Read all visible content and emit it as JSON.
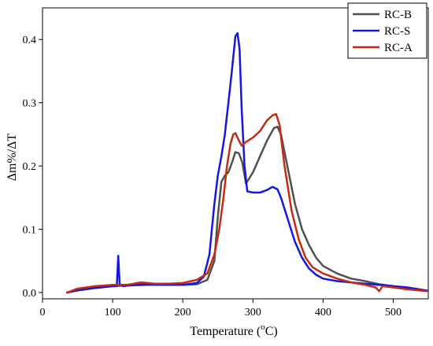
{
  "chart_data": {
    "type": "line",
    "xlabel_prefix": "Temperature (",
    "xlabel_sup": "o",
    "xlabel_suffix": "C)",
    "ylabel": "Δm%/ΔT",
    "xlim": [
      0,
      550
    ],
    "ylim": [
      -0.01,
      0.45
    ],
    "xticks": [
      0,
      100,
      200,
      300,
      400,
      500
    ],
    "yticks": [
      0.0,
      0.1,
      0.2,
      0.3,
      0.4
    ],
    "ytick_labels": [
      "0.0",
      "0.1",
      "0.2",
      "0.3",
      "0.4"
    ],
    "grid": false,
    "legend_position": "top-right",
    "series": [
      {
        "name": "RC-B",
        "color": "#505050",
        "points": [
          [
            35,
            0.0
          ],
          [
            50,
            0.003
          ],
          [
            75,
            0.007
          ],
          [
            100,
            0.01
          ],
          [
            120,
            0.011
          ],
          [
            150,
            0.012
          ],
          [
            180,
            0.012
          ],
          [
            200,
            0.012
          ],
          [
            220,
            0.013
          ],
          [
            235,
            0.02
          ],
          [
            245,
            0.05
          ],
          [
            250,
            0.12
          ],
          [
            255,
            0.175
          ],
          [
            260,
            0.185
          ],
          [
            265,
            0.19
          ],
          [
            270,
            0.205
          ],
          [
            275,
            0.222
          ],
          [
            280,
            0.22
          ],
          [
            285,
            0.205
          ],
          [
            290,
            0.172
          ],
          [
            300,
            0.19
          ],
          [
            310,
            0.215
          ],
          [
            320,
            0.24
          ],
          [
            330,
            0.26
          ],
          [
            335,
            0.262
          ],
          [
            340,
            0.25
          ],
          [
            350,
            0.195
          ],
          [
            360,
            0.14
          ],
          [
            370,
            0.1
          ],
          [
            380,
            0.075
          ],
          [
            390,
            0.055
          ],
          [
            400,
            0.042
          ],
          [
            420,
            0.03
          ],
          [
            440,
            0.022
          ],
          [
            460,
            0.018
          ],
          [
            480,
            0.013
          ],
          [
            500,
            0.01
          ],
          [
            520,
            0.006
          ],
          [
            548,
            0.003
          ]
        ]
      },
      {
        "name": "RC-S",
        "color": "#1616e0",
        "points": [
          [
            35,
            0.0
          ],
          [
            50,
            0.004
          ],
          [
            75,
            0.007
          ],
          [
            100,
            0.01
          ],
          [
            106,
            0.01
          ],
          [
            108,
            0.058
          ],
          [
            110,
            0.013
          ],
          [
            115,
            0.01
          ],
          [
            130,
            0.012
          ],
          [
            150,
            0.013
          ],
          [
            180,
            0.012
          ],
          [
            200,
            0.012
          ],
          [
            220,
            0.015
          ],
          [
            230,
            0.025
          ],
          [
            238,
            0.06
          ],
          [
            245,
            0.14
          ],
          [
            250,
            0.185
          ],
          [
            255,
            0.215
          ],
          [
            260,
            0.25
          ],
          [
            265,
            0.3
          ],
          [
            270,
            0.35
          ],
          [
            275,
            0.405
          ],
          [
            278,
            0.41
          ],
          [
            281,
            0.385
          ],
          [
            284,
            0.29
          ],
          [
            288,
            0.2
          ],
          [
            292,
            0.16
          ],
          [
            300,
            0.158
          ],
          [
            310,
            0.158
          ],
          [
            320,
            0.162
          ],
          [
            328,
            0.167
          ],
          [
            335,
            0.163
          ],
          [
            340,
            0.15
          ],
          [
            350,
            0.115
          ],
          [
            360,
            0.08
          ],
          [
            370,
            0.055
          ],
          [
            380,
            0.038
          ],
          [
            390,
            0.028
          ],
          [
            400,
            0.022
          ],
          [
            420,
            0.018
          ],
          [
            440,
            0.016
          ],
          [
            460,
            0.014
          ],
          [
            480,
            0.012
          ],
          [
            500,
            0.01
          ],
          [
            520,
            0.008
          ],
          [
            548,
            0.003
          ]
        ]
      },
      {
        "name": "RC-A",
        "color": "#c62a10",
        "points": [
          [
            35,
            0.0
          ],
          [
            50,
            0.006
          ],
          [
            75,
            0.01
          ],
          [
            100,
            0.012
          ],
          [
            120,
            0.012
          ],
          [
            140,
            0.016
          ],
          [
            160,
            0.014
          ],
          [
            180,
            0.014
          ],
          [
            200,
            0.015
          ],
          [
            220,
            0.02
          ],
          [
            235,
            0.03
          ],
          [
            245,
            0.06
          ],
          [
            252,
            0.1
          ],
          [
            258,
            0.15
          ],
          [
            263,
            0.2
          ],
          [
            268,
            0.235
          ],
          [
            272,
            0.25
          ],
          [
            275,
            0.252
          ],
          [
            280,
            0.24
          ],
          [
            284,
            0.232
          ],
          [
            290,
            0.238
          ],
          [
            300,
            0.245
          ],
          [
            310,
            0.255
          ],
          [
            320,
            0.272
          ],
          [
            328,
            0.28
          ],
          [
            333,
            0.282
          ],
          [
            338,
            0.265
          ],
          [
            345,
            0.2
          ],
          [
            355,
            0.13
          ],
          [
            365,
            0.085
          ],
          [
            375,
            0.055
          ],
          [
            385,
            0.04
          ],
          [
            400,
            0.03
          ],
          [
            420,
            0.022
          ],
          [
            440,
            0.016
          ],
          [
            460,
            0.012
          ],
          [
            475,
            0.008
          ],
          [
            480,
            0.002
          ],
          [
            485,
            0.01
          ],
          [
            500,
            0.008
          ],
          [
            520,
            0.005
          ],
          [
            548,
            0.002
          ]
        ]
      }
    ]
  }
}
